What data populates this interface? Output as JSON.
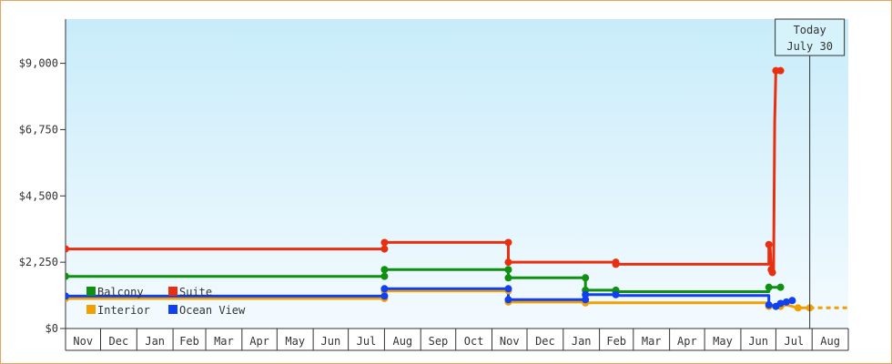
{
  "chart_data": {
    "type": "line",
    "step": true,
    "y_axis": {
      "min": 0,
      "max": 10500,
      "ticks": [
        0,
        2250,
        4500,
        6750,
        9000
      ],
      "tick_labels": [
        "$0",
        "$2,250",
        "$4,500",
        "$6,750",
        "$9,000"
      ]
    },
    "x_axis": {
      "start": "2022-11-01",
      "end": "2024-09-01",
      "month_labels": [
        "Nov",
        "Dec",
        "Jan",
        "Feb",
        "Mar",
        "Apr",
        "May",
        "Jun",
        "Jul",
        "Aug",
        "Sep",
        "Oct",
        "Nov",
        "Dec",
        "Jan",
        "Feb",
        "Mar",
        "Apr",
        "May",
        "Jun",
        "Jul",
        "Aug"
      ]
    },
    "today_marker": {
      "date": "2024-07-30",
      "label_line1": "Today",
      "label_line2": "July 30"
    },
    "legend_position": "bottom-left",
    "grid": false,
    "background_gradient": [
      "#c8ecfa",
      "#f4fbff"
    ],
    "series": [
      {
        "name": "Balcony",
        "color": "#109010",
        "points": [
          [
            "2022-11-01",
            1770
          ],
          [
            "2023-08-01",
            1770
          ],
          [
            "2023-08-01",
            2000
          ],
          [
            "2023-11-15",
            2000
          ],
          [
            "2023-11-15",
            1720
          ],
          [
            "2024-01-20",
            1720
          ],
          [
            "2024-01-20",
            1300
          ],
          [
            "2024-02-15",
            1300
          ],
          [
            "2024-02-15",
            1250
          ],
          [
            "2024-06-25",
            1250
          ],
          [
            "2024-06-25",
            1400
          ],
          [
            "2024-07-05",
            1400
          ]
        ]
      },
      {
        "name": "Suite",
        "color": "#e83010",
        "points": [
          [
            "2022-11-01",
            2700
          ],
          [
            "2023-08-01",
            2700
          ],
          [
            "2023-08-01",
            2920
          ],
          [
            "2023-11-15",
            2920
          ],
          [
            "2023-11-15",
            2250
          ],
          [
            "2024-02-15",
            2250
          ],
          [
            "2024-02-15",
            2180
          ],
          [
            "2024-06-25",
            2180
          ],
          [
            "2024-06-25",
            2850
          ],
          [
            "2024-06-26",
            2850
          ],
          [
            "2024-06-27",
            2000
          ],
          [
            "2024-06-28",
            1900
          ],
          [
            "2024-06-29",
            1950
          ],
          [
            "2024-06-30",
            7000
          ],
          [
            "2024-07-01",
            8750
          ],
          [
            "2024-07-05",
            8750
          ]
        ]
      },
      {
        "name": "Interior",
        "color": "#f0a000",
        "points": [
          [
            "2022-11-01",
            1020
          ],
          [
            "2023-08-01",
            1020
          ],
          [
            "2023-08-01",
            1280
          ],
          [
            "2023-11-15",
            1280
          ],
          [
            "2023-11-15",
            900
          ],
          [
            "2024-01-20",
            900
          ],
          [
            "2024-01-20",
            870
          ],
          [
            "2024-06-25",
            870
          ],
          [
            "2024-06-25",
            750
          ],
          [
            "2024-07-05",
            750
          ],
          [
            "2024-07-10",
            800
          ],
          [
            "2024-07-20",
            700
          ],
          [
            "2024-07-30",
            700
          ]
        ],
        "projection": [
          [
            "2024-07-30",
            700
          ],
          [
            "2024-09-01",
            700
          ]
        ]
      },
      {
        "name": "Ocean View",
        "color": "#1040f0",
        "points": [
          [
            "2022-11-01",
            1100
          ],
          [
            "2023-08-01",
            1100
          ],
          [
            "2023-08-01",
            1350
          ],
          [
            "2023-11-15",
            1350
          ],
          [
            "2023-11-15",
            980
          ],
          [
            "2024-01-20",
            980
          ],
          [
            "2024-01-20",
            1150
          ],
          [
            "2024-02-15",
            1150
          ],
          [
            "2024-02-15",
            1120
          ],
          [
            "2024-06-25",
            1120
          ],
          [
            "2024-06-25",
            800
          ],
          [
            "2024-07-01",
            750
          ],
          [
            "2024-07-05",
            850
          ],
          [
            "2024-07-10",
            900
          ],
          [
            "2024-07-15",
            950
          ]
        ]
      }
    ],
    "markers": {
      "Balcony": [
        [
          "2022-11-01",
          1770
        ],
        [
          "2023-08-01",
          1770
        ],
        [
          "2023-08-01",
          2000
        ],
        [
          "2023-11-15",
          2000
        ],
        [
          "2023-11-15",
          1720
        ],
        [
          "2024-01-20",
          1720
        ],
        [
          "2024-01-20",
          1300
        ],
        [
          "2024-02-15",
          1300
        ],
        [
          "2024-02-15",
          1250
        ],
        [
          "2024-06-25",
          1400
        ],
        [
          "2024-07-05",
          1400
        ]
      ],
      "Suite": [
        [
          "2022-11-01",
          2700
        ],
        [
          "2023-08-01",
          2700
        ],
        [
          "2023-08-01",
          2920
        ],
        [
          "2023-11-15",
          2920
        ],
        [
          "2023-11-15",
          2250
        ],
        [
          "2024-02-15",
          2250
        ],
        [
          "2024-02-15",
          2180
        ],
        [
          "2024-06-25",
          2850
        ],
        [
          "2024-06-27",
          2000
        ],
        [
          "2024-06-28",
          1900
        ],
        [
          "2024-07-01",
          8750
        ],
        [
          "2024-07-05",
          8750
        ]
      ],
      "Interior": [
        [
          "2022-11-01",
          1020
        ],
        [
          "2023-08-01",
          1020
        ],
        [
          "2023-08-01",
          1280
        ],
        [
          "2023-11-15",
          1280
        ],
        [
          "2023-11-15",
          900
        ],
        [
          "2024-01-20",
          870
        ],
        [
          "2024-06-25",
          750
        ],
        [
          "2024-07-05",
          750
        ],
        [
          "2024-07-20",
          700
        ],
        [
          "2024-07-30",
          700
        ]
      ],
      "Ocean View": [
        [
          "2022-11-01",
          1100
        ],
        [
          "2023-08-01",
          1100
        ],
        [
          "2023-08-01",
          1350
        ],
        [
          "2023-11-15",
          1350
        ],
        [
          "2023-11-15",
          980
        ],
        [
          "2024-01-20",
          980
        ],
        [
          "2024-01-20",
          1150
        ],
        [
          "2024-02-15",
          1150
        ],
        [
          "2024-06-25",
          800
        ],
        [
          "2024-07-01",
          750
        ],
        [
          "2024-07-05",
          850
        ],
        [
          "2024-07-10",
          900
        ],
        [
          "2024-07-15",
          950
        ]
      ]
    }
  }
}
